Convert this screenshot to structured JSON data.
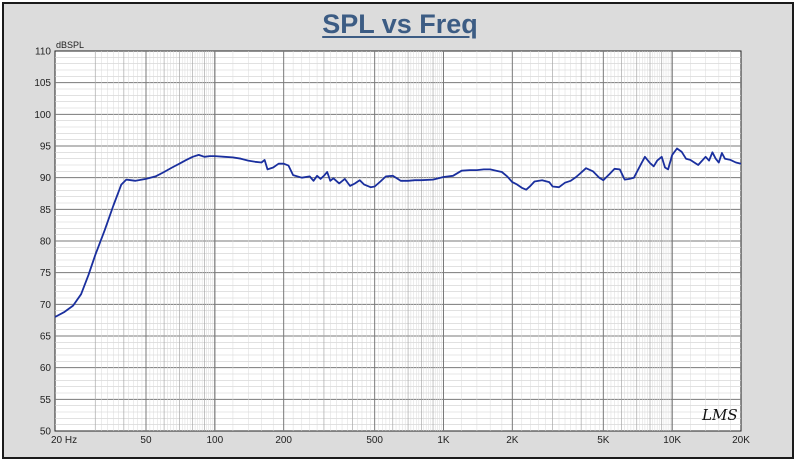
{
  "chart_data": {
    "type": "line",
    "title": "SPL vs Freq",
    "ylabel": "dBSPL",
    "xlabel": "",
    "x_scale": "log",
    "xlim": [
      20,
      20000
    ],
    "ylim": [
      50,
      110
    ],
    "grid": true,
    "x_ticks": [
      {
        "value": 20,
        "label": "20  Hz"
      },
      {
        "value": 50,
        "label": "50"
      },
      {
        "value": 100,
        "label": "100"
      },
      {
        "value": 200,
        "label": "200"
      },
      {
        "value": 500,
        "label": "500"
      },
      {
        "value": 1000,
        "label": "1K"
      },
      {
        "value": 2000,
        "label": "2K"
      },
      {
        "value": 5000,
        "label": "5K"
      },
      {
        "value": 10000,
        "label": "10K"
      },
      {
        "value": 20000,
        "label": "20K"
      }
    ],
    "y_ticks": [
      50,
      55,
      60,
      65,
      70,
      75,
      80,
      85,
      90,
      95,
      100,
      105,
      110
    ],
    "series": [
      {
        "color": "#1a2f9e",
        "x": [
          20,
          22,
          24,
          26,
          28,
          30,
          33,
          36,
          39,
          41,
          45,
          50,
          55,
          60,
          65,
          70,
          75,
          80,
          85,
          90,
          95,
          100,
          110,
          120,
          130,
          140,
          150,
          160,
          165,
          170,
          180,
          190,
          200,
          210,
          220,
          240,
          260,
          270,
          280,
          290,
          300,
          310,
          320,
          330,
          350,
          370,
          390,
          410,
          430,
          450,
          480,
          500,
          530,
          560,
          600,
          650,
          700,
          750,
          800,
          900,
          1000,
          1100,
          1200,
          1300,
          1400,
          1500,
          1600,
          1700,
          1800,
          1900,
          2000,
          2100,
          2200,
          2300,
          2400,
          2500,
          2700,
          2900,
          3000,
          3200,
          3400,
          3600,
          3800,
          4000,
          4200,
          4500,
          4800,
          5000,
          5300,
          5600,
          5900,
          6200,
          6500,
          6800,
          7200,
          7600,
          8000,
          8300,
          8600,
          9000,
          9300,
          9600,
          10000,
          10500,
          11000,
          11500,
          12000,
          12500,
          13000,
          14000,
          14500,
          15000,
          15500,
          16000,
          16500,
          17000,
          18000,
          19000,
          20000
        ],
        "y": [
          68,
          68.8,
          69.8,
          71.6,
          74.6,
          77.8,
          81.7,
          85.6,
          88.9,
          89.7,
          89.5,
          89.8,
          90.2,
          90.9,
          91.6,
          92.2,
          92.8,
          93.3,
          93.6,
          93.3,
          93.4,
          93.4,
          93.3,
          93.2,
          93.0,
          92.7,
          92.5,
          92.4,
          92.8,
          91.3,
          91.6,
          92.2,
          92.2,
          91.9,
          90.4,
          90.0,
          90.2,
          89.5,
          90.3,
          89.8,
          90.3,
          90.9,
          89.5,
          89.9,
          89.1,
          89.8,
          88.7,
          89.1,
          89.6,
          88.9,
          88.5,
          88.6,
          89.4,
          90.2,
          90.3,
          89.5,
          89.5,
          89.6,
          89.6,
          89.7,
          90.1,
          90.3,
          91.1,
          91.2,
          91.2,
          91.3,
          91.3,
          91.1,
          90.9,
          90.2,
          89.3,
          88.9,
          88.4,
          88.1,
          88.7,
          89.4,
          89.6,
          89.3,
          88.6,
          88.5,
          89.2,
          89.5,
          90.1,
          90.8,
          91.5,
          91.0,
          90.0,
          89.6,
          90.5,
          91.4,
          91.3,
          89.7,
          89.8,
          90.0,
          91.7,
          93.3,
          92.3,
          91.8,
          92.7,
          93.3,
          91.6,
          91.3,
          93.6,
          94.6,
          94.1,
          93.0,
          92.8,
          92.4,
          92.0,
          93.3,
          92.7,
          94.0,
          93.0,
          92.4,
          93.9,
          93.0,
          92.8,
          92.4,
          92.2
        ]
      }
    ]
  },
  "watermark": "LMS"
}
